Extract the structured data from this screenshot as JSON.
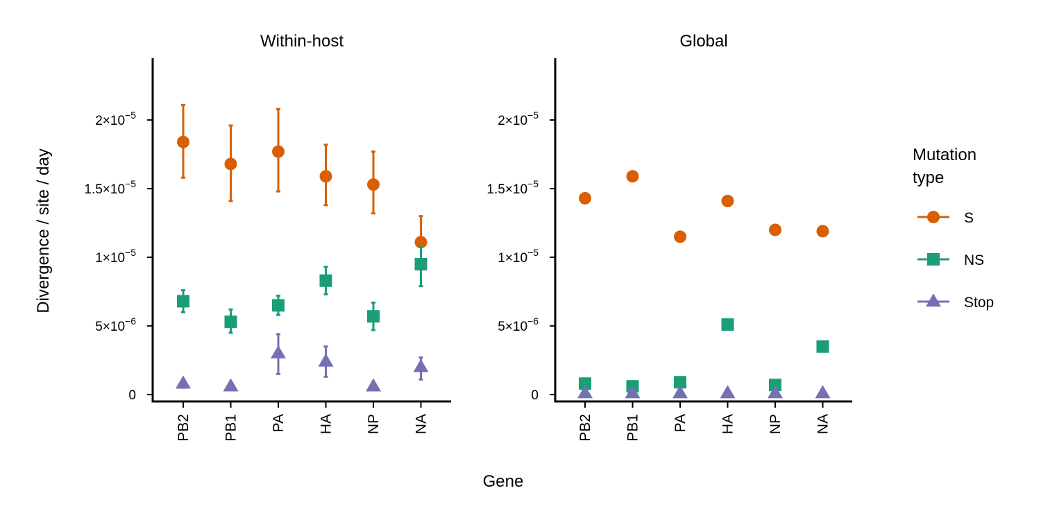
{
  "chart_data": {
    "type": "scatter",
    "xlabel": "Gene",
    "ylabel": "Divergence / site / day",
    "categories": [
      "PB2",
      "PB1",
      "PA",
      "HA",
      "NP",
      "NA"
    ],
    "ylim": [
      -5e-07,
      2.45e-05
    ],
    "y_ticks": [
      {
        "value": 0,
        "label": "0",
        "mantissa": "",
        "exponent": ""
      },
      {
        "value": 5e-06,
        "label": "5×10^-6",
        "mantissa": "5",
        "exponent": "−6"
      },
      {
        "value": 1e-05,
        "label": "1×10^-5",
        "mantissa": "1",
        "exponent": "−5"
      },
      {
        "value": 1.5e-05,
        "label": "1.5×10^-5",
        "mantissa": "1.5",
        "exponent": "−5"
      },
      {
        "value": 2e-05,
        "label": "2×10^-5",
        "mantissa": "2",
        "exponent": "−5"
      }
    ],
    "legend": {
      "title_lines": [
        "Mutation",
        "type"
      ],
      "placement": "right"
    },
    "series_styles": [
      {
        "name": "S",
        "color": "#D95F02",
        "marker": "circle"
      },
      {
        "name": "NS",
        "color": "#1B9E77",
        "marker": "square"
      },
      {
        "name": "Stop",
        "color": "#7570B3",
        "marker": "triangle"
      }
    ],
    "panels": [
      {
        "title": "Within-host",
        "series": [
          {
            "name": "S",
            "values": [
              1.84e-05,
              1.68e-05,
              1.77e-05,
              1.59e-05,
              1.53e-05,
              1.11e-05
            ],
            "lower": [
              1.58e-05,
              1.41e-05,
              1.48e-05,
              1.38e-05,
              1.32e-05,
              9.1e-06
            ],
            "upper": [
              2.11e-05,
              1.96e-05,
              2.08e-05,
              1.82e-05,
              1.77e-05,
              1.3e-05
            ]
          },
          {
            "name": "NS",
            "values": [
              6.8e-06,
              5.3e-06,
              6.5e-06,
              8.3e-06,
              5.7e-06,
              9.5e-06
            ],
            "lower": [
              6e-06,
              4.5e-06,
              5.8e-06,
              7.3e-06,
              4.7e-06,
              7.9e-06
            ],
            "upper": [
              7.6e-06,
              6.2e-06,
              7.2e-06,
              9.3e-06,
              6.7e-06,
              1.08e-05
            ]
          },
          {
            "name": "Stop",
            "values": [
              8e-07,
              6e-07,
              3e-06,
              2.4e-06,
              6e-07,
              2e-06
            ],
            "lower": [
              5e-07,
              4e-07,
              1.5e-06,
              1.3e-06,
              4e-07,
              1.1e-06
            ],
            "upper": [
              1.1e-06,
              9e-07,
              4.4e-06,
              3.5e-06,
              8e-07,
              2.7e-06
            ]
          }
        ]
      },
      {
        "title": "Global",
        "series": [
          {
            "name": "S",
            "values": [
              1.43e-05,
              1.59e-05,
              1.15e-05,
              1.41e-05,
              1.2e-05,
              1.19e-05
            ]
          },
          {
            "name": "NS",
            "values": [
              8e-07,
              6e-07,
              9e-07,
              5.1e-06,
              7e-07,
              3.5e-06
            ]
          },
          {
            "name": "Stop",
            "values": [
              1e-07,
              1e-07,
              1e-07,
              1e-07,
              1e-07,
              1e-07
            ]
          }
        ]
      }
    ]
  }
}
